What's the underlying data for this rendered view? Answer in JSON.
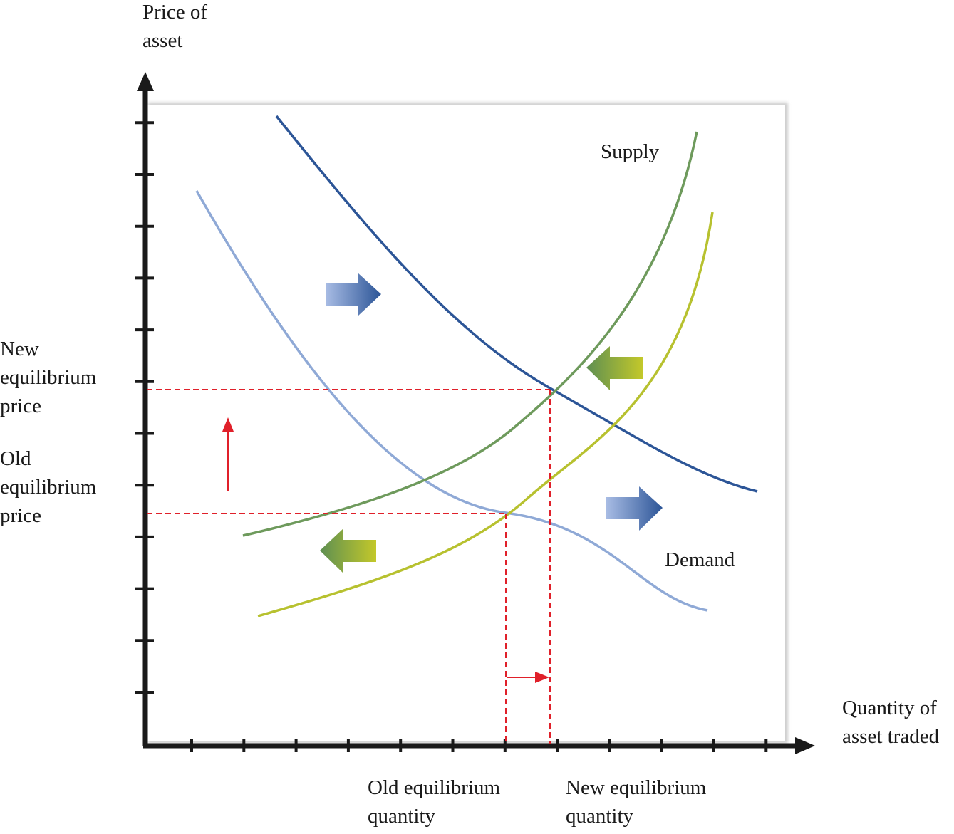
{
  "axes": {
    "y_label": [
      "Price of",
      "asset"
    ],
    "x_label": [
      "Quantity of",
      "asset traded"
    ],
    "x_tick_count": 12,
    "y_tick_count": 12
  },
  "curves": {
    "supply_label": "Supply",
    "demand_label": "Demand"
  },
  "equilibrium": {
    "new_price": [
      "New",
      "equilibrium",
      "price"
    ],
    "old_price": [
      "Old",
      "equilibrium",
      "price"
    ],
    "old_quantity": [
      "Old equilibrium",
      "quantity"
    ],
    "new_quantity": [
      "New equilibrium",
      "quantity"
    ]
  },
  "colors": {
    "axis": "#1a1a1a",
    "old_demand": "#8fa9d6",
    "new_demand": "#2c5597",
    "old_supply": "#6e9a5c",
    "new_supply": "#b7c12f",
    "guide": "#e0202a",
    "frame_shadow": "#cfcfcf"
  }
}
